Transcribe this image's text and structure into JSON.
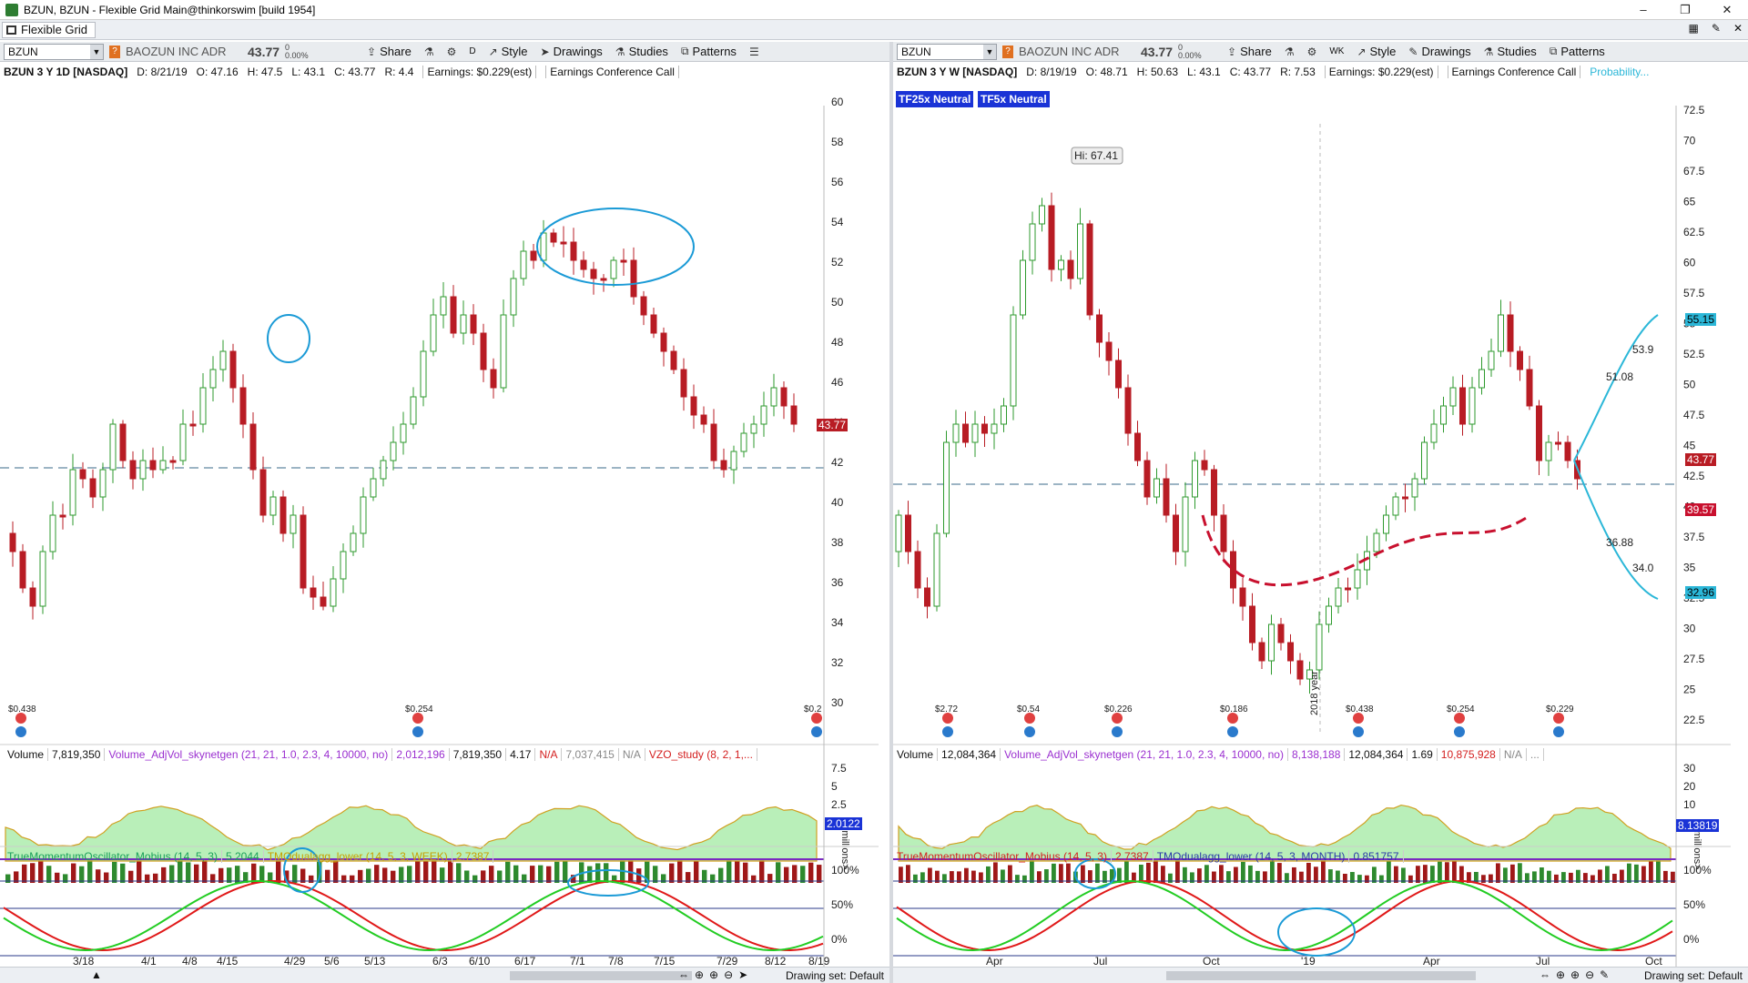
{
  "window": {
    "title": "BZUN, BZUN - Flexible Grid Main@thinkorswim [build 1954]",
    "controls": [
      "–",
      "❐",
      "✕"
    ]
  },
  "tabbar": {
    "tab_label": "Flexible Grid",
    "right_icons": [
      "▦",
      "✎",
      "✕"
    ]
  },
  "colors": {
    "up": "#2e9a2e",
    "down": "#b81c24",
    "accent_blue": "#1a33d6",
    "cyan": "#2bb7d8",
    "crimson": "#c8102e"
  },
  "left": {
    "toolbar": {
      "symbol": "BZUN",
      "company": "BAOZUN INC ADR",
      "last": "43.77",
      "change": "0",
      "change_pct": "0.00%",
      "aggregation": "D",
      "share": "Share",
      "style": "Style",
      "drawings": "Drawings",
      "studies": "Studies",
      "patterns": "Patterns"
    },
    "info": {
      "symbol_desc": "BZUN 3 Y 1D [NASDAQ]",
      "date": "D: 8/21/19",
      "open": "O: 47.16",
      "high": "H: 47.5",
      "low": "L: 43.1",
      "close": "C: 43.77",
      "range": "R: 4.4",
      "earnings": "Earnings: $0.229(est)",
      "event": "Earnings Conference Call"
    },
    "price_ticks": [
      "60",
      "58",
      "56",
      "54",
      "52",
      "50",
      "48",
      "46",
      "44",
      "42",
      "40",
      "38",
      "36",
      "34",
      "32",
      "30"
    ],
    "price_tag": "43.77",
    "earnings_labels": [
      "$0.438",
      "$0.254",
      "$0.2"
    ],
    "volume_header": [
      "Volume",
      "7,819,350",
      "Volume_AdjVol_skynetgen (21, 21, 1.0, 2.3, 4, 10000, no)",
      "2,012,196",
      "7,819,350",
      "4.17",
      "N/A",
      "7,037,415",
      "N/A",
      "VZO_study (8, 2, 1,..."
    ],
    "volume_ticks": [
      "7.5",
      "5",
      "2.5"
    ],
    "volume_tag": "2.0122",
    "tmo_header": [
      "TrueMomentumOscillator_Mobius (14, 5, 3)",
      "5.2044",
      "TMOdualagg_lower (14, 5, 3, WEEK)",
      "2.7387"
    ],
    "tmo_ticks": [
      "100%",
      "50%",
      "0%"
    ],
    "date_ticks": [
      "3/18",
      "4/1",
      "4/8",
      "4/15",
      "4/29",
      "5/6",
      "5/13",
      "6/3",
      "6/10",
      "6/17",
      "7/1",
      "7/8",
      "7/15",
      "7/29",
      "8/12",
      "8/19"
    ],
    "drawing_set": "Drawing set: Default"
  },
  "right": {
    "toolbar": {
      "symbol": "BZUN",
      "company": "BAOZUN INC ADR",
      "last": "43.77",
      "change": "0",
      "change_pct": "0.00%",
      "aggregation": "WK",
      "share": "Share",
      "style": "Style",
      "drawings": "Drawings",
      "studies": "Studies",
      "patterns": "Patterns"
    },
    "info": {
      "symbol_desc": "BZUN 3 Y W [NASDAQ]",
      "date": "D: 8/19/19",
      "open": "O: 48.71",
      "high": "H: 50.63",
      "low": "L: 43.1",
      "close": "C: 43.77",
      "range": "R: 7.53",
      "earnings": "Earnings: $0.229(est)",
      "event": "Earnings Conference Call",
      "probability": "Probability..."
    },
    "badges": [
      "TF25x Neutral",
      "TF5x Neutral"
    ],
    "hi_label": "Hi: 67.41",
    "price_ticks": [
      "72.5",
      "70",
      "67.5",
      "65",
      "62.5",
      "60",
      "57.5",
      "55",
      "52.5",
      "50",
      "47.5",
      "45",
      "42.5",
      "40",
      "37.5",
      "35",
      "32.5",
      "30",
      "27.5",
      "25",
      "22.5"
    ],
    "price_tags": {
      "upper": "55.15",
      "last": "43.77",
      "ma": "39.57",
      "lower": "32.96"
    },
    "prob_labels": [
      "53.9",
      "51.08",
      "36.88",
      "34.0"
    ],
    "earnings_labels": [
      "$2.72",
      "$0.54",
      "$0.226",
      "$0.186",
      "$0.438",
      "$0.254",
      "$0.229"
    ],
    "year_label": "2018 year",
    "volume_header": [
      "Volume",
      "12,084,364",
      "Volume_AdjVol_skynetgen (21, 21, 1.0, 2.3, 4, 10000, no)",
      "8,138,188",
      "12,084,364",
      "1.69",
      "10,875,928",
      "N/A",
      "..."
    ],
    "volume_ticks": [
      "30",
      "20",
      "10"
    ],
    "volume_tag": "8.13819",
    "volume_unit": "<millions>",
    "tmo_header": [
      "TrueMomentumOscillator_Mobius (14, 5, 3)",
      "2.7387",
      "TMOdualagg_lower (14, 5, 3, MONTH)",
      "0.851757"
    ],
    "tmo_ticks": [
      "100%",
      "50%",
      "0%"
    ],
    "date_ticks": [
      "Apr",
      "Jul",
      "Oct",
      "'19",
      "Apr",
      "Jul",
      "Oct"
    ],
    "drawing_set": "Drawing set: Default"
  },
  "left_volume_unit": "<millions>"
}
